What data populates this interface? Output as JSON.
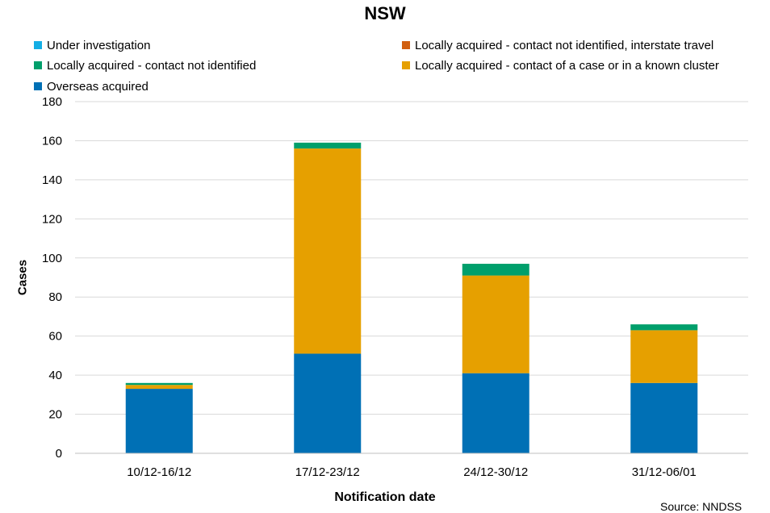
{
  "chart_data": {
    "type": "bar",
    "stacked": true,
    "title": "NSW",
    "xlabel": "Notification date",
    "ylabel": "Cases",
    "ylim": [
      0,
      180
    ],
    "yticks": [
      0,
      20,
      40,
      60,
      80,
      100,
      120,
      140,
      160,
      180
    ],
    "grid": true,
    "legend_position": "top",
    "categories": [
      "10/12-16/12",
      "17/12-23/12",
      "24/12-30/12",
      "31/12-06/01"
    ],
    "series": [
      {
        "name": "Overseas acquired",
        "color": "#0070B5",
        "values": [
          33,
          51,
          41,
          36
        ]
      },
      {
        "name": "Locally acquired - contact of a case or in a known cluster",
        "color": "#E6A000",
        "values": [
          2,
          105,
          50,
          27
        ]
      },
      {
        "name": "Locally acquired - contact not identified",
        "color": "#009F6B",
        "values": [
          1,
          3,
          6,
          3
        ]
      },
      {
        "name": "Locally acquired - contact not identified, interstate travel",
        "color": "#D15F10",
        "values": [
          0,
          0,
          0,
          0
        ]
      },
      {
        "name": "Under investigation",
        "color": "#13AEE5",
        "values": [
          0,
          0,
          0,
          0
        ]
      }
    ],
    "legend_order": [
      "Under investigation",
      "Locally acquired - contact not identified, interstate travel",
      "Locally acquired - contact not identified",
      "Locally acquired - contact of a case or in a known cluster",
      "Overseas acquired"
    ],
    "source": "Source: NNDSS"
  }
}
